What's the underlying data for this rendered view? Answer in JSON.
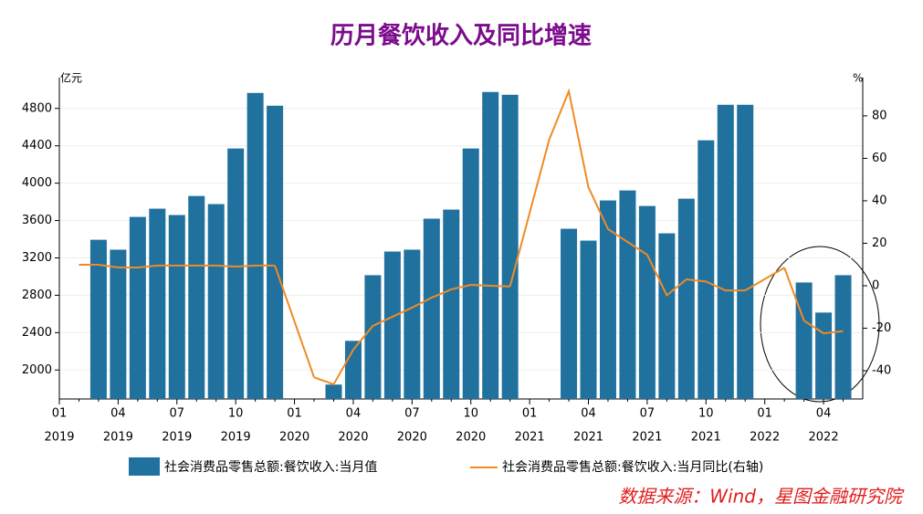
{
  "chart_data": {
    "type": "bar_line",
    "title": "历月餐饮收入及同比增速",
    "y_unit": "亿元",
    "y2_unit": "%",
    "source": "数据来源：Wind，星图金融研究院",
    "categories": [
      "01",
      null,
      null,
      "04",
      null,
      null,
      "07",
      null,
      null,
      "10",
      null,
      null,
      "01",
      null,
      null,
      "04",
      null,
      null,
      "07",
      null,
      null,
      "10",
      null,
      null,
      "01",
      null,
      null,
      "04",
      null,
      null,
      "07",
      null,
      null,
      "10",
      null,
      null,
      "01",
      null,
      null,
      "04",
      null
    ],
    "category_years": [
      "2019",
      null,
      null,
      "2019",
      null,
      null,
      "2019",
      null,
      null,
      "2019",
      null,
      null,
      "2020",
      null,
      null,
      "2020",
      null,
      null,
      "2020",
      null,
      null,
      "2020",
      null,
      null,
      "2021",
      null,
      null,
      "2021",
      null,
      null,
      "2021",
      null,
      null,
      "2021",
      null,
      null,
      "2022",
      null,
      null,
      "2022",
      null
    ],
    "series": [
      {
        "name": "社会消费品零售总额:餐饮收入:当月值",
        "type": "bar",
        "color": "#21719f",
        "values": [
          null,
          null,
          3394,
          3288,
          3639,
          3727,
          3659,
          3863,
          3776,
          4371,
          4966,
          4829,
          null,
          null,
          1844,
          2312,
          3015,
          3268,
          3288,
          3620,
          3717,
          4371,
          4976,
          4946,
          null,
          null,
          3512,
          3385,
          3815,
          3922,
          3756,
          3463,
          3834,
          4459,
          4839,
          4839,
          null,
          null,
          2937,
          2615,
          3015
        ]
      },
      {
        "name": "社会消费品零售总额:餐饮收入:当月同比(右轴)",
        "type": "line",
        "axis": "y2",
        "color": "#f08a24",
        "connect_gaps": true,
        "values": [
          null,
          9.9,
          9.9,
          8.6,
          8.6,
          9.5,
          9.5,
          9.5,
          9.5,
          9.0,
          9.5,
          9.5,
          null,
          -43.1,
          -46.4,
          -30.1,
          -18.9,
          -14.6,
          -10.3,
          -5.6,
          -1.7,
          0.4,
          0,
          -0.3,
          null,
          68.8,
          91.6,
          46.4,
          26.7,
          20.6,
          14.6,
          -4.5,
          3.0,
          2.0,
          -2.2,
          -2.2,
          null,
          8.5,
          -16.4,
          -22.4,
          -21.4
        ]
      }
    ],
    "ylim": [
      1690,
      5130
    ],
    "yticks": [
      2000,
      2400,
      2800,
      3200,
      3600,
      4000,
      4400,
      4800
    ],
    "y2lim": [
      -53.3,
      98
    ],
    "y2ticks": [
      -40,
      -20,
      0,
      20,
      40,
      60,
      80
    ],
    "grid": true
  }
}
